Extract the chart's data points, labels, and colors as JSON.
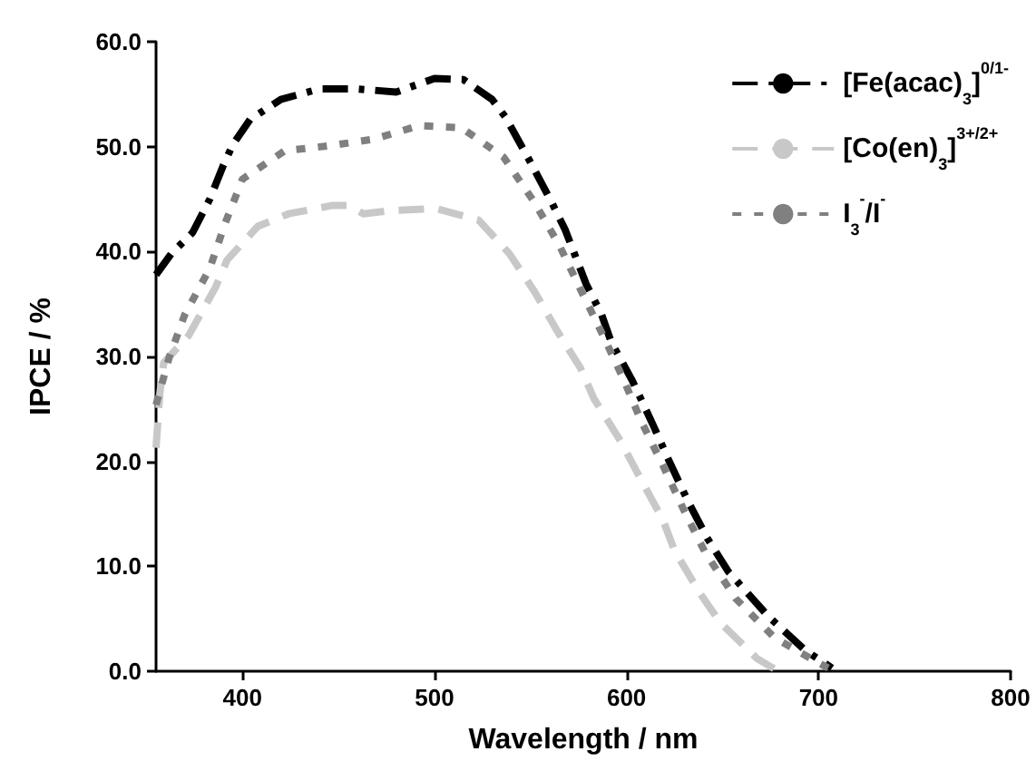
{
  "chart_data": {
    "type": "line",
    "xlabel": "Wavelength / nm",
    "ylabel": "IPCE / %",
    "xlim": [
      355,
      800
    ],
    "xticks": [
      400,
      500,
      600,
      700,
      800
    ],
    "ylim": [
      0,
      60
    ],
    "yticks": [
      {
        "value": 0,
        "label": "0.0"
      },
      {
        "value": 10,
        "label": "10.0"
      },
      {
        "value": 20,
        "label": "20.0"
      },
      {
        "value": 30,
        "label": "30.0"
      },
      {
        "value": 40,
        "label": "40.0"
      },
      {
        "value": 50,
        "label": "50.0"
      },
      {
        "value": 60,
        "label": "60.0"
      }
    ],
    "grid": false,
    "legend": "top right",
    "marker": "none",
    "series": [
      {
        "name": "[Fe(acac)$_{3}$]$^{0/1-}$",
        "color": "#000000",
        "line_style": "dashdot",
        "x": [
          355,
          363,
          374,
          383,
          390,
          395,
          404,
          420,
          440,
          460,
          480,
          500,
          515,
          530,
          537,
          550,
          561,
          568,
          579,
          587,
          592,
          603,
          614,
          621,
          632,
          642,
          653,
          674,
          693,
          707
        ],
        "values": [
          37.8,
          39.8,
          41.8,
          45,
          48.2,
          50.2,
          52.6,
          54.5,
          55.5,
          55.5,
          55.2,
          56.5,
          56.4,
          54.5,
          52.8,
          48.5,
          44.7,
          42.1,
          36.9,
          34,
          31.4,
          27.7,
          23.4,
          20.5,
          16.2,
          12.7,
          9.5,
          5.2,
          2,
          0.3
        ]
      },
      {
        "name": "[Co(en)$_{3}$]$^{3+/2+}$",
        "color": "#c8c8c8",
        "line_style": "dashed",
        "x": [
          355,
          357,
          359,
          372,
          386,
          392,
          408,
          424,
          447,
          455,
          463,
          477,
          501,
          523,
          539,
          552,
          564,
          576,
          583,
          597,
          606,
          619,
          625,
          638,
          649,
          668,
          679
        ],
        "values": [
          21.3,
          26.5,
          29.4,
          32,
          36.6,
          39.2,
          42.4,
          43.6,
          44.4,
          44.4,
          43.6,
          43.9,
          44.1,
          43,
          39.8,
          36.2,
          32.4,
          28.9,
          26,
          21.9,
          18.8,
          14.4,
          11.5,
          7.5,
          4.6,
          1.2,
          0
        ]
      },
      {
        "name": "I$_{3}$$^{-}$/I$^{-}$",
        "color": "#808080",
        "line_style": "dotted",
        "x": [
          355,
          362,
          370,
          383,
          391,
          400,
          422,
          446,
          468,
          492,
          514,
          536,
          552,
          565,
          576,
          587,
          598,
          608,
          619,
          630,
          641,
          657,
          677,
          699,
          705
        ],
        "values": [
          25.4,
          30,
          34,
          38.4,
          42.7,
          46.9,
          49.6,
          50.1,
          50.7,
          52,
          51.8,
          49,
          44.7,
          40.6,
          36.4,
          32.3,
          28,
          23.7,
          19.6,
          15.3,
          11.3,
          6.9,
          3.2,
          0.9,
          0.3
        ]
      }
    ]
  }
}
